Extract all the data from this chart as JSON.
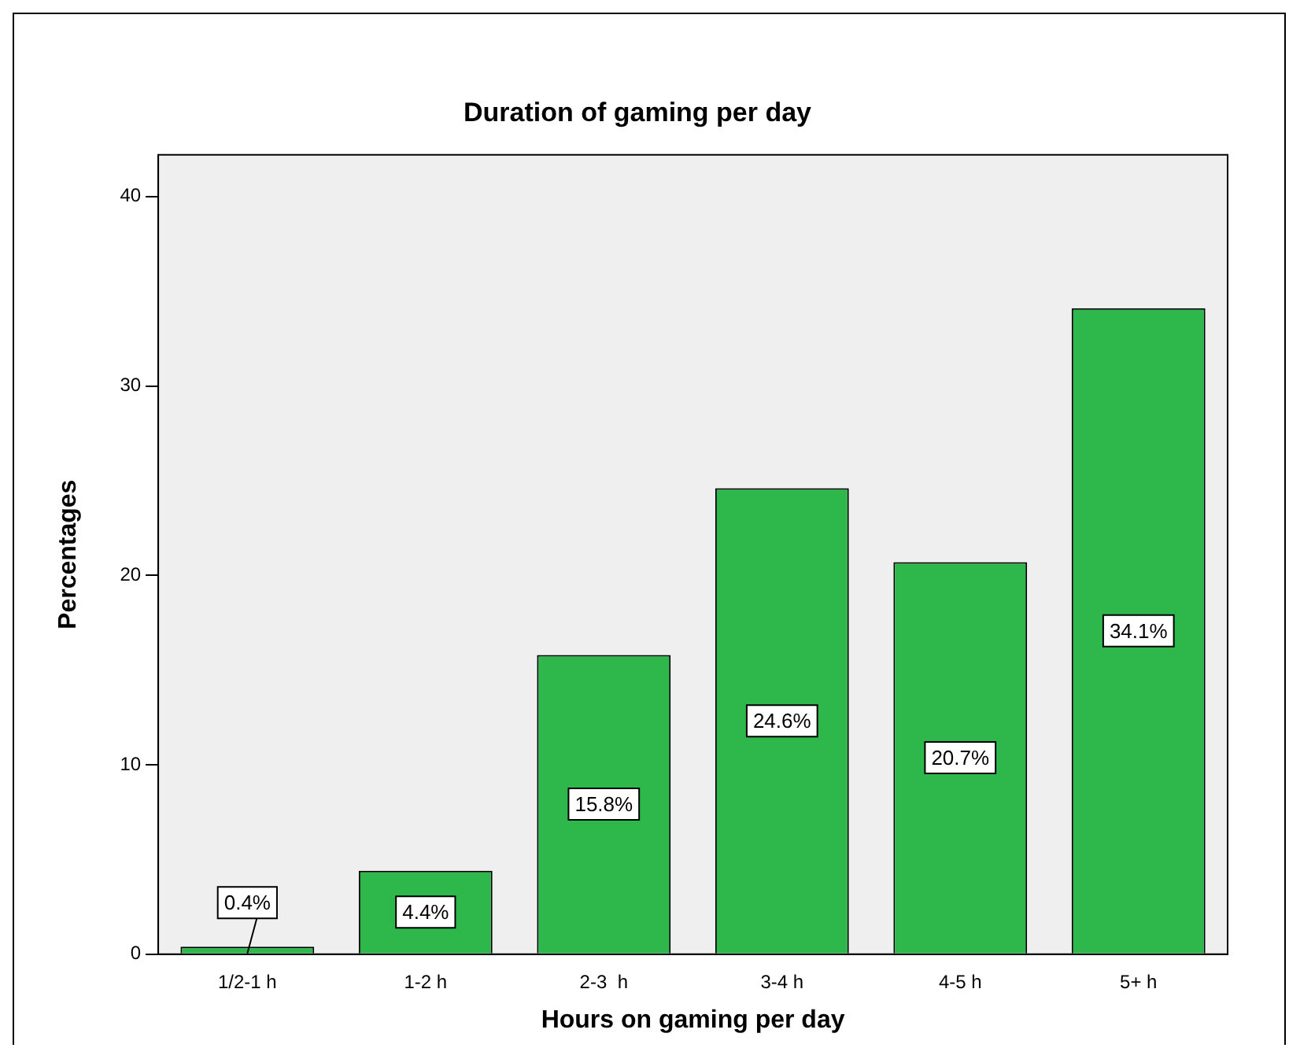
{
  "chart_data": {
    "type": "bar",
    "title": "Duration of gaming per day",
    "xlabel": "Hours on gaming per day",
    "ylabel": "Percentages",
    "categories": [
      "1/2-1 h",
      "1-2 h",
      "2-3  h",
      "3-4 h",
      "4-5 h",
      "5+ h"
    ],
    "values": [
      0.4,
      4.4,
      15.8,
      24.6,
      20.7,
      34.1
    ],
    "value_labels": [
      "0.4%",
      "4.4%",
      "15.8%",
      "24.6%",
      "20.7%",
      "34.1%"
    ],
    "color": "#2eb84b",
    "ylim": [
      0,
      42.2
    ],
    "yticks": [
      0,
      10,
      20,
      30,
      40
    ],
    "grid": false,
    "legend": false
  }
}
